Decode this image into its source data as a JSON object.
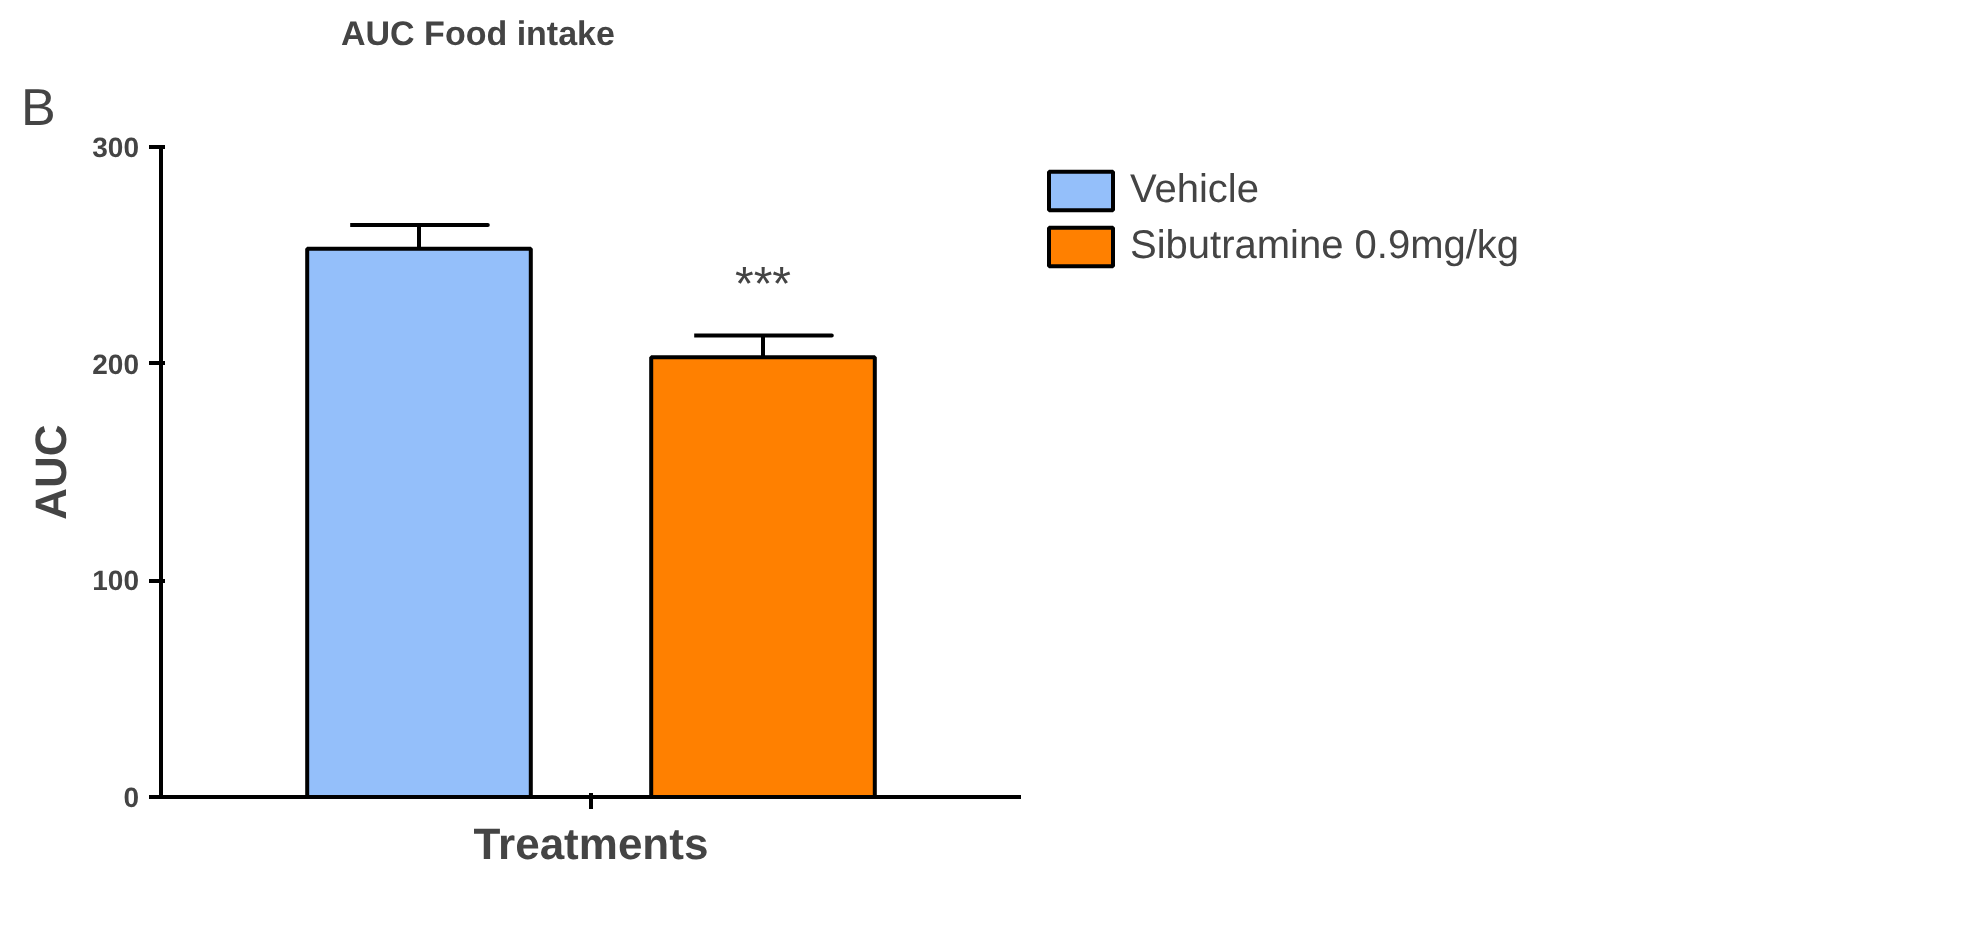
{
  "chart_data": {
    "type": "bar",
    "title": "AUC Food intake",
    "xlabel": "Treatments",
    "ylabel": "AUC",
    "annotations": [
      "B"
    ],
    "categories": [
      null
    ],
    "series": [
      {
        "name": "Vehicle",
        "color": "#94bffa",
        "values": [
          253
        ],
        "errors": [
          [
            253,
            264
          ]
        ],
        "value_labels": [
          null
        ]
      },
      {
        "name": "Sibutramine 0.9mg/kg",
        "color": "#ff8000",
        "values": [
          203
        ],
        "errors": [
          [
            203,
            213
          ]
        ],
        "value_labels": [
          "***"
        ]
      }
    ],
    "ylim": [
      0,
      300
    ],
    "yticks": [
      0,
      100,
      200,
      300
    ],
    "grid": false,
    "legend": "right"
  }
}
